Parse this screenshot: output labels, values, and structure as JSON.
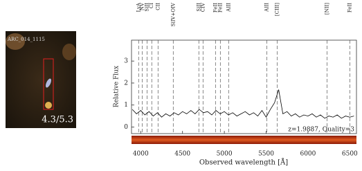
{
  "image_panel": {
    "label": "ARC_014_1115",
    "ratio": "4.3/5.3"
  },
  "chart_data": {
    "type": "line",
    "x_label": "Observed wavelength [Å]",
    "y_label": "Relative Flux",
    "annotation": "z=1.9887, Quality=3",
    "x": [
      3900,
      3950,
      4000,
      4050,
      4100,
      4150,
      4200,
      4250,
      4300,
      4350,
      4400,
      4450,
      4500,
      4550,
      4600,
      4650,
      4700,
      4750,
      4800,
      4850,
      4900,
      4950,
      5000,
      5050,
      5100,
      5150,
      5200,
      5250,
      5300,
      5350,
      5400,
      5450,
      5500,
      5550,
      5600,
      5650,
      5700,
      5750,
      5800,
      5850,
      5900,
      5950,
      6000,
      6050,
      6100,
      6150,
      6200,
      6250,
      6300,
      6350,
      6400,
      6450,
      6500,
      6550
    ],
    "values": [
      0.8,
      0.6,
      0.75,
      0.55,
      0.7,
      0.5,
      0.65,
      0.45,
      0.6,
      0.5,
      0.65,
      0.55,
      0.7,
      0.6,
      0.75,
      0.6,
      0.8,
      0.65,
      0.7,
      0.55,
      0.75,
      0.6,
      0.7,
      0.55,
      0.65,
      0.5,
      0.6,
      0.7,
      0.55,
      0.65,
      0.5,
      0.75,
      0.45,
      0.8,
      1.1,
      1.7,
      0.6,
      0.7,
      0.5,
      0.6,
      0.45,
      0.55,
      0.5,
      0.6,
      0.45,
      0.55,
      0.4,
      0.5,
      0.45,
      0.55,
      0.4,
      0.5,
      0.45,
      0.5
    ],
    "color": "#000000",
    "xlim": [
      3890,
      6580
    ],
    "ylim": [
      -0.3,
      3.95
    ],
    "xticks": [
      4000,
      4500,
      5000,
      5500,
      6000,
      6500
    ],
    "yticks": [
      0,
      1,
      2,
      3
    ],
    "lines": [
      {
        "name": "LyA",
        "wavelength": 3975
      },
      {
        "name": "NV",
        "wavelength": 4017
      },
      {
        "name": "SiII",
        "wavelength": 4075
      },
      {
        "name": "CI",
        "wavelength": 4132
      },
      {
        "name": "CII",
        "wavelength": 4207
      },
      {
        "name": "SiIV+OIV",
        "wavelength": 4389
      },
      {
        "name": "SiII",
        "wavelength": 4695
      },
      {
        "name": "CIV",
        "wavelength": 4745
      },
      {
        "name": "FeII",
        "wavelength": 4894
      },
      {
        "name": "FeII",
        "wavelength": 4952
      },
      {
        "name": "AlII",
        "wavelength": 5051
      },
      {
        "name": "AlII",
        "wavelength": 5507
      },
      {
        "name": "[CIII]",
        "wavelength": 5631
      },
      {
        "name": "[NII]",
        "wavelength": 6227
      },
      {
        "name": "FeII",
        "wavelength": 6500
      }
    ]
  }
}
